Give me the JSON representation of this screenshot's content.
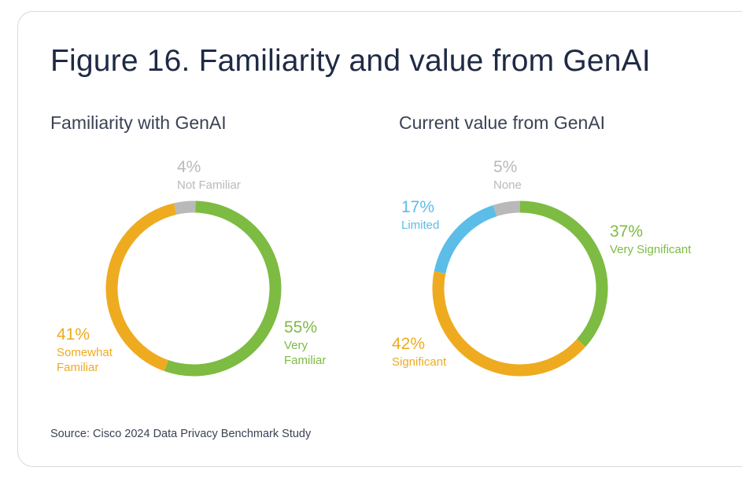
{
  "figure_title": "Figure 16. Familiarity and value from GenAI",
  "source": "Source: Cisco 2024 Data Privacy Benchmark Study",
  "chart_data": [
    {
      "type": "pie",
      "title": "Familiarity with GenAI",
      "slices": [
        {
          "label_lines": [
            "Not Familiar"
          ],
          "pct_text": "4%",
          "value": 4,
          "color": "#b9b9b9"
        },
        {
          "label_lines": [
            "Very",
            "Familiar"
          ],
          "pct_text": "55%",
          "value": 55,
          "color": "#7dbb42"
        },
        {
          "label_lines": [
            "Somewhat",
            "Familiar"
          ],
          "pct_text": "41%",
          "value": 41,
          "color": "#eeab1f"
        }
      ]
    },
    {
      "type": "pie",
      "title": "Current value from GenAI",
      "slices": [
        {
          "label_lines": [
            "None"
          ],
          "pct_text": "5%",
          "value": 5,
          "color": "#b9b9b9"
        },
        {
          "label_lines": [
            "Very Significant"
          ],
          "pct_text": "37%",
          "value": 37,
          "color": "#7dbb42"
        },
        {
          "label_lines": [
            "Significant"
          ],
          "pct_text": "42%",
          "value": 42,
          "color": "#eeab1f"
        },
        {
          "label_lines": [
            "Limited"
          ],
          "pct_text": "17%",
          "value": 17,
          "color": "#5bbde8"
        }
      ]
    }
  ]
}
